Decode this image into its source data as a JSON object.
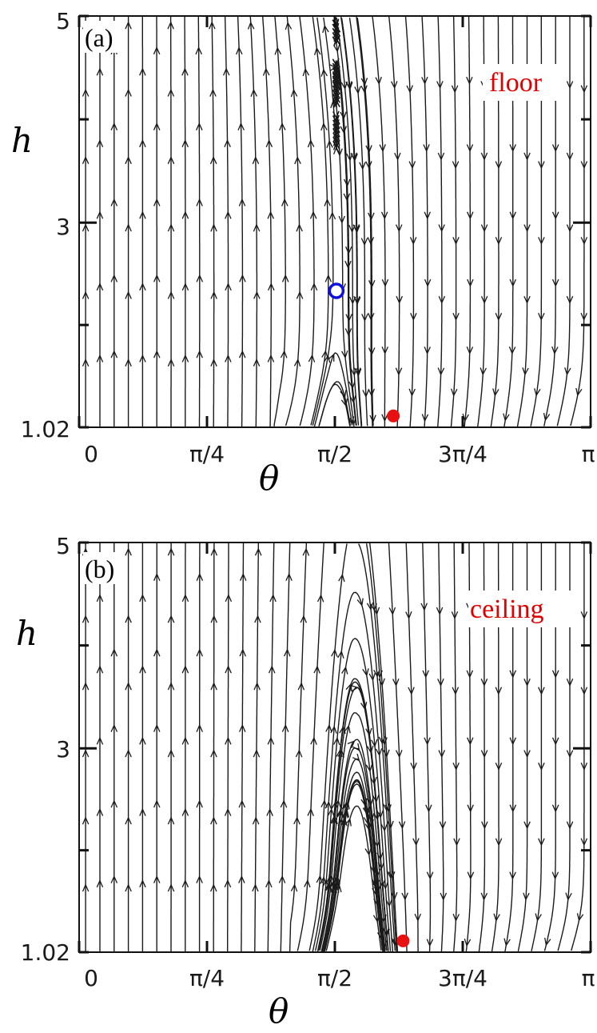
{
  "chart_data": [
    {
      "type": "streamplot",
      "panel_label": "(a)",
      "annotation": "floor",
      "xlabel": "θ",
      "ylabel": "h",
      "xlim": [
        0,
        3.14159
      ],
      "ylim": [
        1.02,
        5
      ],
      "xticks": [
        {
          "value": 0,
          "label": "0"
        },
        {
          "value": 0.7854,
          "label": "π/4"
        },
        {
          "value": 1.5708,
          "label": "π/2"
        },
        {
          "value": 2.3562,
          "label": "3π/4"
        },
        {
          "value": 3.14159,
          "label": "π"
        }
      ],
      "yticks": [
        {
          "value": 1.02,
          "label": "1.02"
        },
        {
          "value": 3,
          "label": "3"
        },
        {
          "value": 5,
          "label": "5"
        }
      ],
      "fixed_points": [
        {
          "theta": 1.58,
          "h": 2.34,
          "kind": "saddle",
          "color": "#1010dd"
        },
        {
          "theta": 1.93,
          "h": 1.13,
          "kind": "stable",
          "color": "#e81010"
        }
      ],
      "flow": {
        "center": 1.58,
        "saddle_h": 2.34,
        "stable_theta": 1.93,
        "stable_h": 1.13,
        "right_down_from": 1.7
      }
    },
    {
      "type": "streamplot",
      "panel_label": "(b)",
      "annotation": "ceiling",
      "xlabel": "θ",
      "ylabel": "h",
      "xlim": [
        0,
        3.14159
      ],
      "ylim": [
        1.02,
        5
      ],
      "xticks": [
        {
          "value": 0,
          "label": "0"
        },
        {
          "value": 0.7854,
          "label": "π/4"
        },
        {
          "value": 1.5708,
          "label": "π/2"
        },
        {
          "value": 2.3562,
          "label": "3π/4"
        },
        {
          "value": 3.14159,
          "label": "π"
        }
      ],
      "yticks": [
        {
          "value": 1.02,
          "label": "1.02"
        },
        {
          "value": 3,
          "label": "3"
        },
        {
          "value": 5,
          "label": "5"
        }
      ],
      "fixed_points": [
        {
          "theta": 1.99,
          "h": 1.13,
          "kind": "stable",
          "color": "#e81010"
        }
      ],
      "flow": {
        "arch_center": 1.7,
        "stable_theta": 1.99,
        "stable_h": 1.13
      }
    }
  ]
}
